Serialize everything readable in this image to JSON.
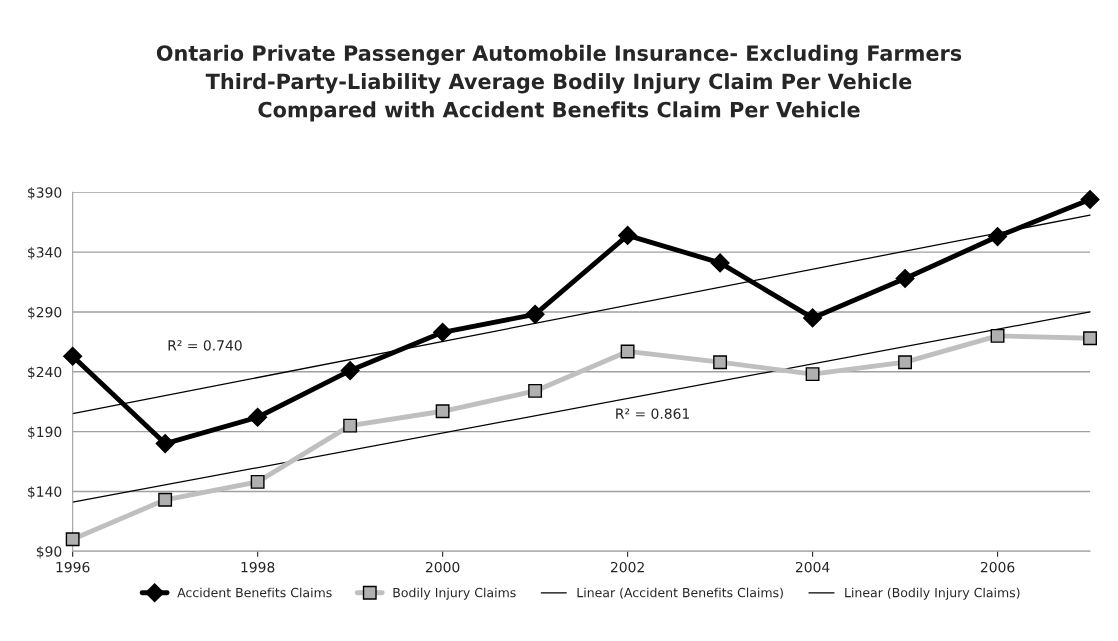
{
  "chart_data": {
    "type": "line",
    "title": "Ontario Private Passenger Automobile Insurance- Excluding Farmers\nThird-Party-Liability Average Bodily Injury Claim Per Vehicle\nCompared with Accident Benefits Claim Per Vehicle",
    "x": [
      1996,
      1997,
      1998,
      1999,
      2000,
      2001,
      2002,
      2003,
      2004,
      2005,
      2006,
      2007
    ],
    "series": [
      {
        "name": "Accident Benefits Claims",
        "color": "#000000",
        "marker": "diamond",
        "values": [
          253,
          180,
          202,
          241,
          273,
          288,
          354,
          331,
          285,
          318,
          353,
          384
        ]
      },
      {
        "name": "Bodily Injury Claims",
        "color": "#bfbfbf",
        "marker": "square",
        "values": [
          100,
          133,
          148,
          195,
          207,
          224,
          257,
          248,
          238,
          248,
          270,
          268
        ]
      },
      {
        "name": "Linear (Accident Benefits Claims)",
        "color": "#000000",
        "marker": "none",
        "values": [
          205,
          null,
          null,
          null,
          null,
          null,
          null,
          null,
          null,
          null,
          null,
          371
        ]
      },
      {
        "name": "Linear (Bodily Injury Claims)",
        "color": "#000000",
        "marker": "none",
        "values": [
          131,
          null,
          null,
          null,
          null,
          null,
          null,
          null,
          null,
          null,
          null,
          290
        ]
      }
    ],
    "annotations": [
      "R² = 0.740",
      "R² = 0.861"
    ],
    "xlim": [
      1996,
      2007
    ],
    "xticks": [
      1996,
      1998,
      2000,
      2002,
      2004,
      2006
    ],
    "ylim": [
      90,
      390
    ],
    "yticks": [
      {
        "value": 90,
        "label": "$90"
      },
      {
        "value": 140,
        "label": "$140"
      },
      {
        "value": 190,
        "label": "$190"
      },
      {
        "value": 240,
        "label": "$240"
      },
      {
        "value": 290,
        "label": "$290"
      },
      {
        "value": 340,
        "label": "$340"
      },
      {
        "value": 390,
        "label": "$390"
      }
    ],
    "grid": "y",
    "legend": "bottom"
  }
}
